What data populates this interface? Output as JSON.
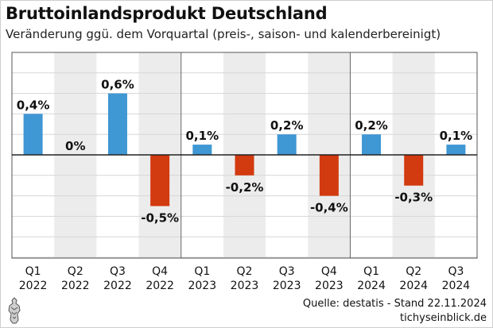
{
  "header": {
    "title": "Bruttoinlandsprodukt Deutschland",
    "subtitle": "Veränderung ggü. dem Vorquartal (preis-, saison- und kalenderbereinigt)"
  },
  "footer": {
    "source": "Quelle: destatis - Stand 22.11.2024",
    "brand": "tichyseinblick.de"
  },
  "colors": {
    "positive": "#3f97d3",
    "negative": "#d23a0f",
    "shade": "#ececec",
    "grid": "#d6d6d6"
  },
  "chart_data": {
    "type": "bar",
    "categories": [
      [
        "Q1",
        "2022"
      ],
      [
        "Q2",
        "2022"
      ],
      [
        "Q3",
        "2022"
      ],
      [
        "Q4",
        "2022"
      ],
      [
        "Q1",
        "2023"
      ],
      [
        "Q2",
        "2023"
      ],
      [
        "Q3",
        "2023"
      ],
      [
        "Q4",
        "2023"
      ],
      [
        "Q1",
        "2024"
      ],
      [
        "Q2",
        "2024"
      ],
      [
        "Q3",
        "2024"
      ]
    ],
    "values": [
      0.4,
      0.0,
      0.6,
      -0.5,
      0.1,
      -0.2,
      0.2,
      -0.4,
      0.2,
      -0.3,
      0.1
    ],
    "value_labels": [
      "0,4%",
      "0%",
      "0,6%",
      "-0,5%",
      "0,1%",
      "-0,2%",
      "0,2%",
      "-0,4%",
      "0,2%",
      "-0,3%",
      "0,1%"
    ],
    "ylim": [
      -1.0,
      1.0
    ],
    "y_grid_step": 0.2,
    "grid": true,
    "year_separators": true
  }
}
